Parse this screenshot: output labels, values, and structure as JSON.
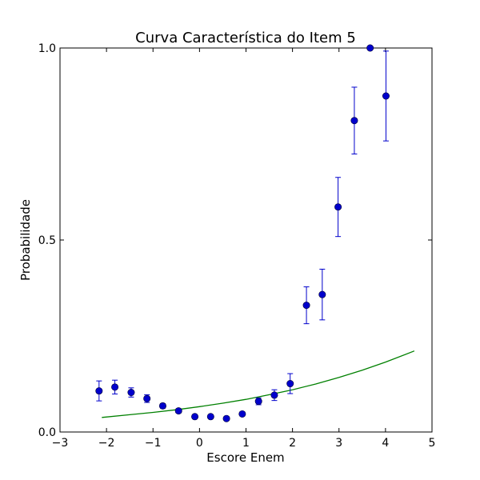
{
  "chart_data": {
    "type": "scatter",
    "title": "Curva Característica do Item 5",
    "xlabel": "Escore Enem",
    "ylabel": "Probabilidade",
    "xlim": [
      -3,
      5
    ],
    "ylim": [
      0,
      1
    ],
    "xticks": [
      -3,
      -2,
      -1,
      0,
      1,
      2,
      3,
      4,
      5
    ],
    "xtick_labels": [
      "−3",
      "−2",
      "−1",
      "0",
      "1",
      "2",
      "3",
      "4",
      "5"
    ],
    "yticks": [
      0,
      0.5,
      1
    ],
    "ytick_labels": [
      "0.0",
      "0.5",
      "1.0"
    ],
    "grid": false,
    "series": [
      {
        "kind": "points-with-errorbars",
        "color": "#0000cc",
        "points": [
          {
            "x": -2.16,
            "y": 0.107,
            "err": 0.026
          },
          {
            "x": -1.82,
            "y": 0.117,
            "err": 0.018
          },
          {
            "x": -1.47,
            "y": 0.103,
            "err": 0.012
          },
          {
            "x": -1.13,
            "y": 0.087,
            "err": 0.01
          },
          {
            "x": -0.79,
            "y": 0.068,
            "err": 0.006
          },
          {
            "x": -0.45,
            "y": 0.055,
            "err": 0.005
          },
          {
            "x": -0.1,
            "y": 0.04,
            "err": 0.004
          },
          {
            "x": 0.24,
            "y": 0.04,
            "err": 0.004
          },
          {
            "x": 0.58,
            "y": 0.035,
            "err": 0.004
          },
          {
            "x": 0.92,
            "y": 0.047,
            "err": 0.005
          },
          {
            "x": 1.27,
            "y": 0.08,
            "err": 0.009
          },
          {
            "x": 1.61,
            "y": 0.096,
            "err": 0.014
          },
          {
            "x": 1.95,
            "y": 0.126,
            "err": 0.026
          },
          {
            "x": 2.3,
            "y": 0.33,
            "err": 0.048
          },
          {
            "x": 2.64,
            "y": 0.358,
            "err": 0.066
          },
          {
            "x": 2.98,
            "y": 0.586,
            "err": 0.077
          },
          {
            "x": 3.33,
            "y": 0.811,
            "err": 0.087
          },
          {
            "x": 3.67,
            "y": 1.0,
            "err": 0.0
          },
          {
            "x": 4.01,
            "y": 0.875,
            "err": 0.117
          }
        ]
      },
      {
        "kind": "line",
        "color": "#008000",
        "x": [
          -2.1,
          -1.5,
          -1.0,
          -0.5,
          0.0,
          0.5,
          1.0,
          1.5,
          2.0,
          2.5,
          3.0,
          3.5,
          4.0,
          4.62
        ],
        "y": [
          0.038,
          0.045,
          0.051,
          0.058,
          0.066,
          0.075,
          0.085,
          0.097,
          0.11,
          0.125,
          0.142,
          0.161,
          0.182,
          0.211
        ]
      }
    ]
  }
}
